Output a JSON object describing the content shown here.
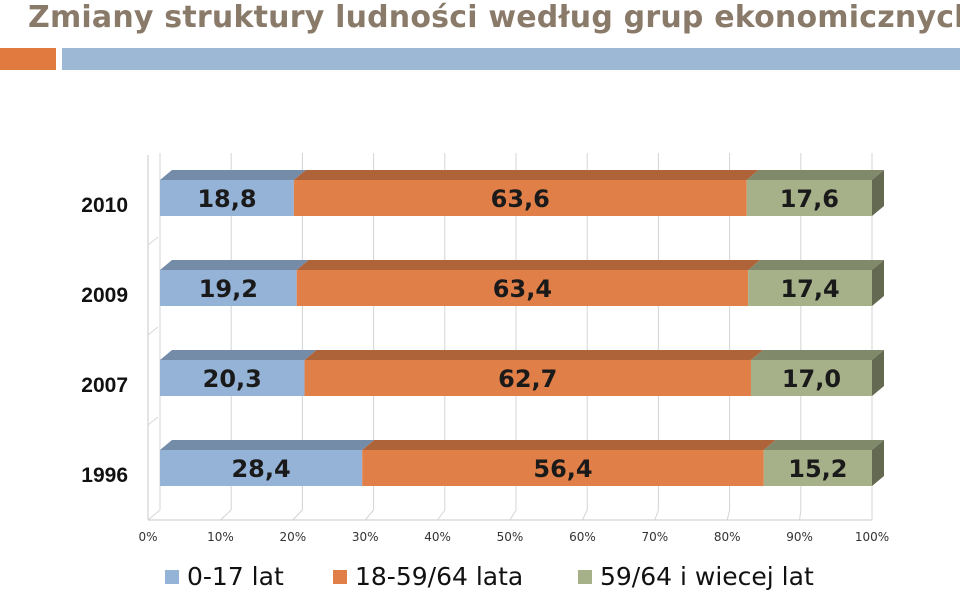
{
  "title": "Zmiany struktury ludności według grup ekonomicznych",
  "colors": {
    "title": "#8a7a6a",
    "accent_orange": "#e07a3f",
    "accent_blue": "#9cb8d4",
    "series": [
      "#95b3d7",
      "#e07f48",
      "#a6b089"
    ]
  },
  "chart_data": {
    "type": "bar",
    "orientation": "horizontal",
    "stacked": "percent",
    "categories": [
      "2010",
      "2009",
      "2007",
      "1996"
    ],
    "series": [
      {
        "name": "0-17 lat",
        "values": [
          18.8,
          19.2,
          20.3,
          28.4
        ],
        "labels": [
          "18,8",
          "19,2",
          "20,3",
          "28,4"
        ]
      },
      {
        "name": "18-59/64 lata",
        "values": [
          63.6,
          63.4,
          62.7,
          56.4
        ],
        "labels": [
          "63,6",
          "63,4",
          "62,7",
          "56,4"
        ]
      },
      {
        "name": "59/64 i wiecej lat",
        "values": [
          17.6,
          17.4,
          17.0,
          15.2
        ],
        "labels": [
          "17,6",
          "17,4",
          "17,0",
          "15,2"
        ]
      }
    ],
    "xlim": [
      0,
      100
    ],
    "xticks": [
      "0%",
      "10%",
      "20%",
      "30%",
      "40%",
      "50%",
      "60%",
      "70%",
      "80%",
      "90%",
      "100%"
    ],
    "grid": true,
    "legend": "bottom"
  }
}
